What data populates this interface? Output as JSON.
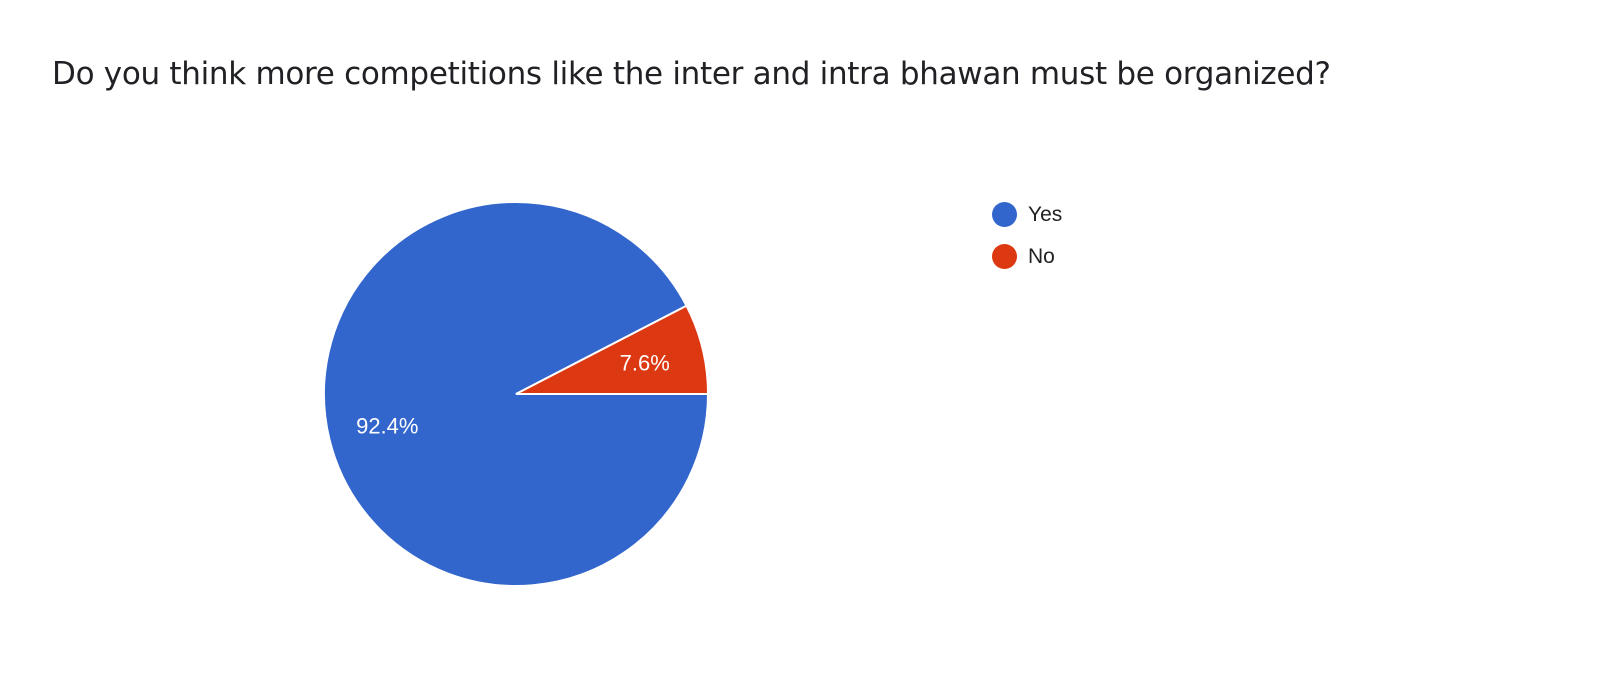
{
  "chart_data": {
    "type": "pie",
    "title": "Do you think more competitions like the inter and intra bhawan must be organized?",
    "categories": [
      "Yes",
      "No"
    ],
    "values": [
      92.4,
      7.6
    ],
    "labels": [
      "92.4%",
      "7.6%"
    ],
    "colors": [
      "#3366cc",
      "#dc3912"
    ],
    "legend_position": "right"
  }
}
